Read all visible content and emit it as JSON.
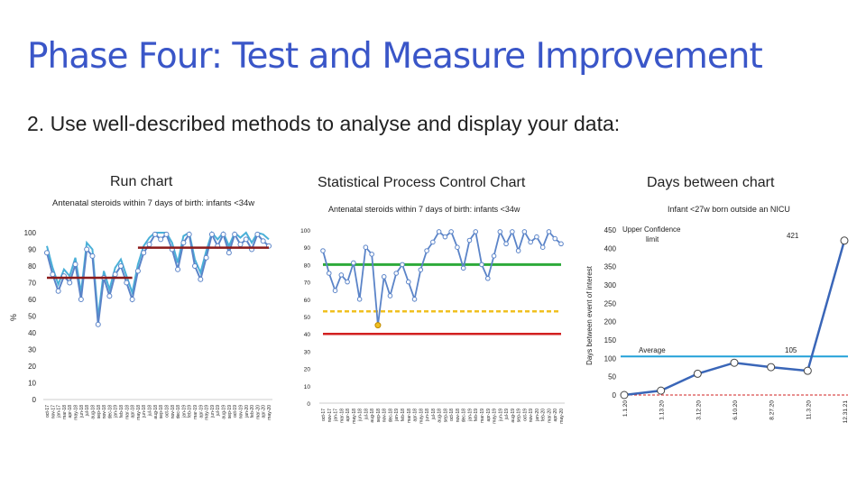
{
  "page": {
    "title": "Phase Four: Test and Measure Improvement",
    "subtitle": "2. Use well-described methods to analyse and display your data:"
  },
  "panels": {
    "run_title": "Run chart",
    "spc_title": "Statistical Process Control Chart",
    "days_title": "Days between chart"
  },
  "colors": {
    "title": "#3a56c8",
    "series": "#5b84c8",
    "series_light": "#4ab0d8",
    "median": "#8b1a1a",
    "mean": "#2eaa3a",
    "ucl": "#f0c020",
    "lcl": "#d22020",
    "average_line": "#22a0d8",
    "days_line": "#3a66b8"
  },
  "chart_data": [
    {
      "type": "line",
      "title": "Antenatal steroids within 7 days of birth: infants <34w",
      "ylabel": "%",
      "ylim": [
        0,
        100
      ],
      "yticks": [
        0,
        10,
        20,
        30,
        40,
        50,
        60,
        70,
        80,
        90,
        100
      ],
      "grid": false,
      "categories": [
        "oct-17",
        "nov-17",
        "jan-17",
        "mar-18",
        "apr-18",
        "may-18",
        "jun-18",
        "jul-18",
        "aug-18",
        "sep-18",
        "nov-18",
        "dec-18",
        "jan-19",
        "feb-18",
        "mar-18",
        "apr-18",
        "may-18",
        "jun-18",
        "jul-18",
        "aug-18",
        "sep-18",
        "oct-18",
        "nov-18",
        "dec-18",
        "jan-19",
        "feb-19",
        "mar-19",
        "apr-19",
        "may-19",
        "jun-19",
        "jul-19",
        "aug-19",
        "sep-19",
        "oct-19",
        "nov-19",
        "jan-20",
        "feb-20",
        "mar-20",
        "apr-20",
        "may-20"
      ],
      "series": [
        {
          "values": [
            88,
            75,
            65,
            74,
            70,
            81,
            60,
            90,
            86,
            45,
            73,
            62,
            75,
            80,
            70,
            60,
            77,
            88,
            93,
            99,
            96,
            99,
            90,
            78,
            94,
            99,
            80,
            72,
            85,
            99,
            92,
            99,
            88,
            99,
            93,
            96,
            90,
            99,
            95,
            92
          ]
        }
      ],
      "median_segments": [
        {
          "x_start": 0,
          "x_end": 15,
          "y": 73
        },
        {
          "x_start": 16,
          "x_end": 39,
          "y": 91
        }
      ]
    },
    {
      "type": "line",
      "title": "Antenatal steroids within 7 days of birth: infants <34w",
      "ylim": [
        0,
        100
      ],
      "yticks": [
        0,
        10,
        20,
        30,
        40,
        50,
        60,
        70,
        80,
        90,
        100
      ],
      "grid": false,
      "categories": [
        "oct-17",
        "nov-17",
        "jan-17",
        "mar-18",
        "apr-18",
        "may-18",
        "jun-18",
        "jul-18",
        "aug-18",
        "sep-18",
        "nov-18",
        "dec-18",
        "jan-19",
        "feb-18",
        "mar-18",
        "apr-18",
        "may-18",
        "jun-18",
        "jul-18",
        "aug-18",
        "sep-18",
        "oct-18",
        "nov-18",
        "dec-18",
        "jan-19",
        "feb-19",
        "mar-19",
        "apr-19",
        "may-19",
        "jun-19",
        "jul-19",
        "aug-19",
        "sep-19",
        "oct-19",
        "nov-19",
        "jan-20",
        "feb-20",
        "mar-20",
        "apr-20",
        "may-20"
      ],
      "series": [
        {
          "values": [
            88,
            75,
            65,
            74,
            70,
            81,
            60,
            90,
            86,
            45,
            73,
            62,
            75,
            80,
            70,
            60,
            77,
            88,
            93,
            99,
            96,
            99,
            90,
            78,
            94,
            99,
            80,
            72,
            85,
            99,
            92,
            99,
            88,
            99,
            93,
            96,
            90,
            99,
            95,
            92
          ]
        }
      ],
      "highlight_point": 9,
      "mean": 80,
      "ucl": 53,
      "lcl": 40
    },
    {
      "type": "line",
      "title": "Infant <27w born outside an NICU",
      "ylabel": "Days between event of interest",
      "ylim": [
        0,
        450
      ],
      "yticks": [
        0,
        50,
        100,
        150,
        200,
        250,
        300,
        350,
        400,
        450
      ],
      "grid": false,
      "categories": [
        "1.1.20",
        "1.13.20",
        "3.12.20",
        "6.10.20",
        "8.27.20",
        "11.3.20",
        "12.31.21"
      ],
      "series": [
        {
          "values": [
            0,
            12,
            58,
            88,
            76,
            66,
            421
          ]
        }
      ],
      "average": 105,
      "average_label": "Average",
      "average_value_label": "105",
      "ucl_label": "Upper Confidence limit",
      "last_value_label": "421"
    }
  ]
}
